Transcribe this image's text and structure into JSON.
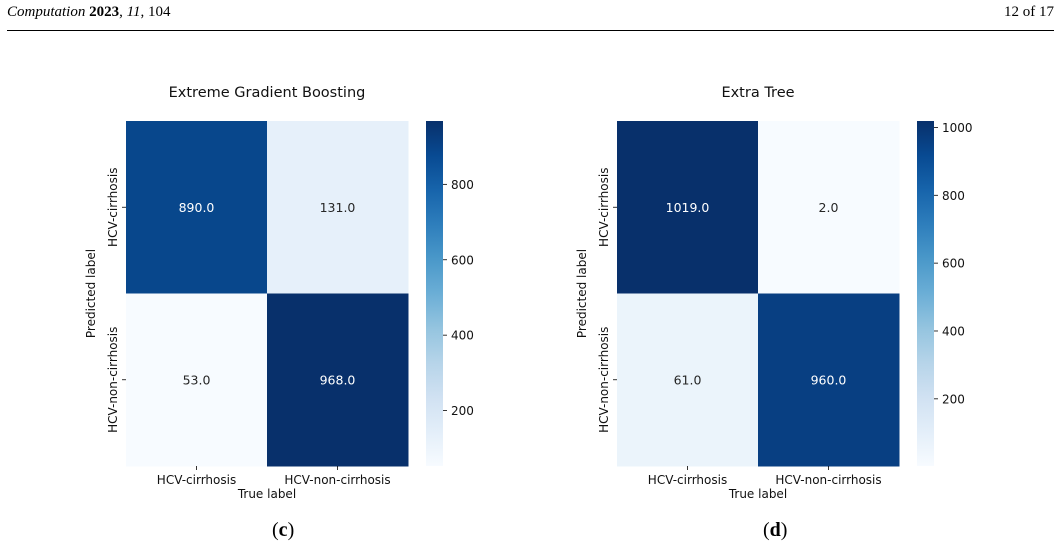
{
  "header": {
    "journal": "Computation",
    "year": "2023",
    "volume": "11",
    "article": "104",
    "page": "12 of 17"
  },
  "panels": [
    {
      "label_open": "(",
      "label_letter": "c",
      "label_close": ")"
    },
    {
      "label_open": "(",
      "label_letter": "d",
      "label_close": ")"
    }
  ],
  "chart_data": [
    {
      "type": "heatmap",
      "title": "Extreme Gradient Boosting",
      "xlabel": "True label",
      "ylabel": "Predicted label",
      "x_categories": [
        "HCV-cirrhosis",
        "HCV-non-cirrhosis"
      ],
      "y_categories": [
        "HCV-cirrhosis",
        "HCV-non-cirrhosis"
      ],
      "values": [
        [
          890.0,
          131.0
        ],
        [
          53.0,
          968.0
        ]
      ],
      "value_labels": [
        [
          "890.0",
          "131.0"
        ],
        [
          "53.0",
          "968.0"
        ]
      ],
      "colormap": "Blues",
      "colorbar": {
        "min": 53,
        "max": 968,
        "ticks": [
          200,
          400,
          600,
          800
        ]
      }
    },
    {
      "type": "heatmap",
      "title": "Extra Tree",
      "xlabel": "True label",
      "ylabel": "Predicted label",
      "x_categories": [
        "HCV-cirrhosis",
        "HCV-non-cirrhosis"
      ],
      "y_categories": [
        "HCV-cirrhosis",
        "HCV-non-cirrhosis"
      ],
      "values": [
        [
          1019.0,
          2.0
        ],
        [
          61.0,
          960.0
        ]
      ],
      "value_labels": [
        [
          "1019.0",
          "2.0"
        ],
        [
          "61.0",
          "960.0"
        ]
      ],
      "colormap": "Blues",
      "colorbar": {
        "min": 2,
        "max": 1019,
        "ticks": [
          200,
          400,
          600,
          800,
          1000
        ]
      }
    }
  ]
}
